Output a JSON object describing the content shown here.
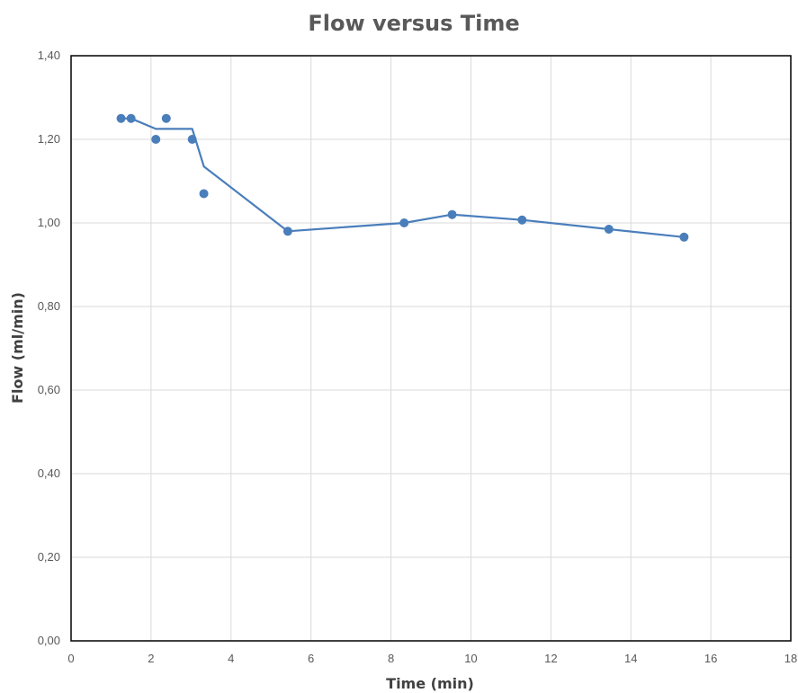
{
  "chart_data": {
    "type": "scatter",
    "title": "Flow versus Time",
    "xlabel": "Time (min)",
    "ylabel": "Flow (ml/min)",
    "xlim": [
      0,
      18
    ],
    "ylim": [
      0,
      1.4
    ],
    "x_ticks": [
      "0",
      "2",
      "4",
      "6",
      "8",
      "10",
      "12",
      "14",
      "16",
      "18"
    ],
    "y_ticks": [
      "0,00",
      "0,20",
      "0,40",
      "0,60",
      "0,80",
      "1,00",
      "1,20",
      "1,40"
    ],
    "grid": true,
    "legend": "none",
    "series": [
      {
        "mode": "markers",
        "color": "#4a7ebb",
        "points": [
          {
            "x": 1.25,
            "y": 1.25
          },
          {
            "x": 1.5,
            "y": 1.25
          },
          {
            "x": 2.12,
            "y": 1.2
          },
          {
            "x": 2.38,
            "y": 1.25
          },
          {
            "x": 3.03,
            "y": 1.2
          },
          {
            "x": 3.32,
            "y": 1.07
          },
          {
            "x": 5.42,
            "y": 0.98
          },
          {
            "x": 8.33,
            "y": 1.0
          },
          {
            "x": 9.53,
            "y": 1.02
          },
          {
            "x": 11.28,
            "y": 1.007
          },
          {
            "x": 13.45,
            "y": 0.985
          },
          {
            "x": 15.33,
            "y": 0.966
          }
        ]
      },
      {
        "mode": "line",
        "color": "#4a7ebb",
        "points": [
          {
            "x": 1.25,
            "y": 1.25
          },
          {
            "x": 1.5,
            "y": 1.25
          },
          {
            "x": 2.12,
            "y": 1.225
          },
          {
            "x": 2.38,
            "y": 1.225
          },
          {
            "x": 3.03,
            "y": 1.225
          },
          {
            "x": 3.32,
            "y": 1.135
          },
          {
            "x": 5.42,
            "y": 0.98
          },
          {
            "x": 8.33,
            "y": 1.0
          },
          {
            "x": 9.53,
            "y": 1.02
          },
          {
            "x": 11.28,
            "y": 1.007
          },
          {
            "x": 13.45,
            "y": 0.985
          },
          {
            "x": 15.33,
            "y": 0.966
          }
        ]
      }
    ]
  }
}
